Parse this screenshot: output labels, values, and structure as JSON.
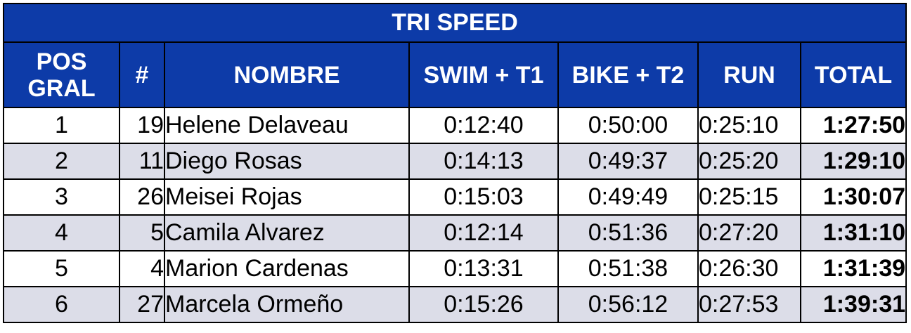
{
  "title": "TRI SPEED",
  "headers": {
    "pos_line1": "POS",
    "pos_line2": "GRAL",
    "num": "#",
    "name": "NOMBRE",
    "swim": "SWIM + T1",
    "bike": "BIKE + T2",
    "run": "RUN",
    "total": "TOTAL"
  },
  "rows": [
    {
      "pos": "1",
      "num": "19",
      "name": "Helene Delaveau",
      "swim": "0:12:40",
      "bike": "0:50:00",
      "run": "0:25:10",
      "total": "1:27:50"
    },
    {
      "pos": "2",
      "num": "11",
      "name": "Diego Rosas",
      "swim": "0:14:13",
      "bike": "0:49:37",
      "run": "0:25:20",
      "total": "1:29:10"
    },
    {
      "pos": "3",
      "num": "26",
      "name": "Meisei Rojas",
      "swim": "0:15:03",
      "bike": "0:49:49",
      "run": "0:25:15",
      "total": "1:30:07"
    },
    {
      "pos": "4",
      "num": "5",
      "name": "Camila Alvarez",
      "swim": "0:12:14",
      "bike": "0:51:36",
      "run": "0:27:20",
      "total": "1:31:10"
    },
    {
      "pos": "5",
      "num": "4",
      "name": "Marion Cardenas",
      "swim": "0:13:31",
      "bike": "0:51:38",
      "run": "0:26:30",
      "total": "1:31:39"
    },
    {
      "pos": "6",
      "num": "27",
      "name": "Marcela Ormeño",
      "swim": "0:15:26",
      "bike": "0:56:12",
      "run": "0:27:53",
      "total": "1:39:31"
    }
  ],
  "colors": {
    "header_bg": "#0d3ba8",
    "header_text": "#ffffff",
    "row_alt_bg": "#dcdde8",
    "border": "#000000"
  }
}
